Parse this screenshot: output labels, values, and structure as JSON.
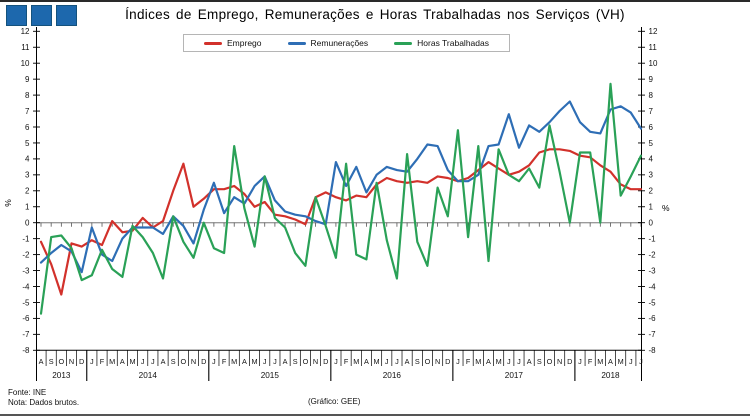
{
  "window": {
    "top_edge_color": "#2a2a2a"
  },
  "header": {
    "logo_color": "#1d68ad",
    "logo_square_count": 3
  },
  "footer": {
    "source": "Fonte: INE",
    "note": "Nota: Dados brutos.",
    "credit": "(Gráfico: GEE)"
  },
  "chart_data": {
    "type": "line",
    "title": "Índices de Emprego, Remunerações e Horas Trabalhadas nos Serviços (VH)",
    "ylabel": "%",
    "ylim": [
      -8,
      12
    ],
    "ytick_step": 1,
    "grid": "zero-line-only",
    "legend_position": "top-center-boxed",
    "dual_y_axis": true,
    "x_months": [
      "A",
      "S",
      "O",
      "N",
      "D",
      "J",
      "F",
      "M",
      "A",
      "M",
      "J",
      "J",
      "A",
      "S",
      "O",
      "N",
      "D",
      "J",
      "F",
      "M",
      "A",
      "M",
      "J",
      "J",
      "A",
      "S",
      "O",
      "N",
      "D",
      "J",
      "F",
      "M",
      "A",
      "M",
      "J",
      "J",
      "A",
      "S",
      "O",
      "N",
      "D",
      "J",
      "F",
      "M",
      "A",
      "M",
      "J",
      "J",
      "A",
      "S",
      "O",
      "N",
      "D",
      "J",
      "F",
      "M",
      "A",
      "M",
      "J",
      "J"
    ],
    "x_years": [
      {
        "label": "2013",
        "months": 5
      },
      {
        "label": "2014",
        "months": 12
      },
      {
        "label": "2015",
        "months": 12
      },
      {
        "label": "2016",
        "months": 12
      },
      {
        "label": "2017",
        "months": 12
      },
      {
        "label": "2018",
        "months": 7
      }
    ],
    "x_range_note": "Aug-2013 to Jul-2018, monthly",
    "series": [
      {
        "key": "emprego",
        "name": "Emprego",
        "color": "#d2312b",
        "values": [
          -1.2,
          -2.6,
          -4.5,
          -1.3,
          -1.5,
          -1.1,
          -1.4,
          0.1,
          -0.6,
          -0.5,
          0.3,
          -0.3,
          0.1,
          2.0,
          3.7,
          1.0,
          1.5,
          2.1,
          2.1,
          2.3,
          1.8,
          1.0,
          1.3,
          0.5,
          0.4,
          0.2,
          -0.1,
          1.6,
          1.9,
          1.6,
          1.4,
          1.7,
          1.6,
          2.4,
          2.8,
          2.6,
          2.5,
          2.6,
          2.5,
          2.9,
          2.8,
          2.6,
          2.8,
          3.3,
          3.8,
          3.4,
          3.0,
          3.2,
          3.6,
          4.4,
          4.6,
          4.6,
          4.5,
          4.2,
          4.1,
          3.6,
          3.2,
          2.4,
          2.1,
          2.1
        ]
      },
      {
        "key": "remuneracoes",
        "name": "Remunerações",
        "color": "#2e6eb5",
        "values": [
          -2.5,
          -1.9,
          -1.4,
          -1.8,
          -3.1,
          -0.3,
          -2.0,
          -2.4,
          -1.0,
          -0.3,
          -0.3,
          -0.3,
          -0.7,
          0.4,
          -0.2,
          -1.3,
          0.8,
          2.5,
          0.6,
          1.6,
          1.2,
          2.3,
          2.9,
          1.4,
          0.7,
          0.5,
          0.4,
          0.1,
          -0.1,
          3.8,
          2.3,
          3.5,
          1.9,
          3.0,
          3.5,
          3.3,
          3.2,
          4.0,
          4.9,
          4.8,
          3.3,
          2.6,
          2.6,
          3.0,
          4.8,
          4.9,
          6.8,
          4.7,
          6.1,
          5.7,
          6.3,
          7.0,
          7.6,
          6.3,
          5.7,
          5.6,
          7.1,
          7.3,
          6.9,
          5.9
        ]
      },
      {
        "key": "horas-trabalhadas",
        "name": "Horas Trabalhadas",
        "color": "#2aa157",
        "values": [
          -5.7,
          -0.9,
          -0.8,
          -1.6,
          -3.6,
          -3.3,
          -1.7,
          -2.9,
          -3.4,
          -0.2,
          -0.9,
          -1.9,
          -3.5,
          0.4,
          -1.2,
          -2.2,
          0.0,
          -1.6,
          -1.9,
          4.8,
          0.9,
          -1.5,
          2.9,
          0.3,
          -0.3,
          -1.9,
          -2.7,
          1.6,
          -0.2,
          -2.2,
          3.7,
          -2.0,
          -2.3,
          2.5,
          -1.1,
          -3.5,
          4.3,
          -1.2,
          -2.7,
          2.2,
          0.4,
          5.8,
          -0.9,
          4.8,
          -2.4,
          4.6,
          3.0,
          2.6,
          3.4,
          2.2,
          6.1,
          3.2,
          0.0,
          4.4,
          4.4,
          0.0,
          8.7,
          1.7,
          2.9,
          4.2
        ]
      }
    ]
  }
}
